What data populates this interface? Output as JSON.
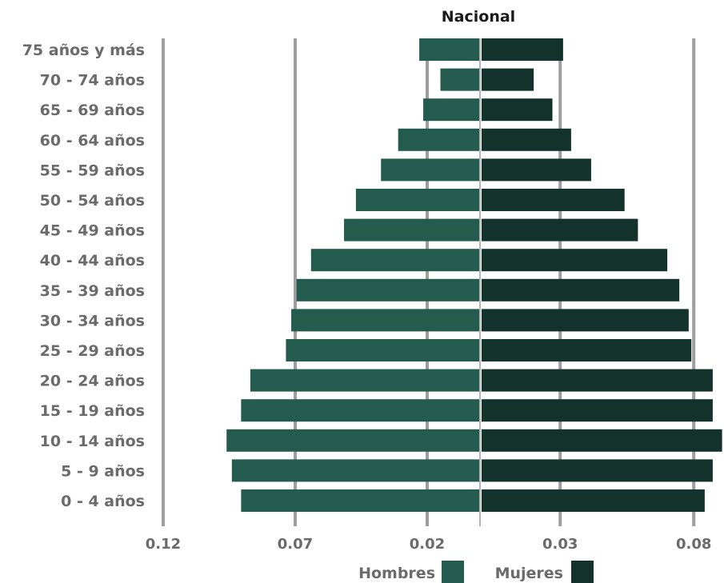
{
  "chart_data": {
    "type": "bar",
    "orientation": "horizontal-pyramid",
    "title": "Nacional",
    "categories": [
      "75 años y más",
      "70 - 74 años",
      "65 - 69 años",
      "60 - 64 años",
      "55 - 59 años",
      "50 - 54 años",
      "45 - 49 años",
      "40 - 44 años",
      "35 - 39 años",
      "30 - 34 años",
      "25 - 29 años",
      "20 - 24 años",
      "15 - 19 años",
      "10 - 14 años",
      "5 - 9 años",
      "0 - 4 años"
    ],
    "series": [
      {
        "name": "Hombres",
        "color": "#235c4e",
        "side": "left",
        "values": [
          0.023,
          0.015,
          0.0215,
          0.031,
          0.0375,
          0.047,
          0.0515,
          0.064,
          0.0695,
          0.0715,
          0.0735,
          0.087,
          0.0905,
          0.096,
          0.094,
          0.0905
        ]
      },
      {
        "name": "Mujeres",
        "color": "#13322b",
        "side": "right",
        "values": [
          0.0305,
          0.0195,
          0.0265,
          0.0335,
          0.041,
          0.0535,
          0.0585,
          0.0695,
          0.074,
          0.0775,
          0.0785,
          0.0865,
          0.0865,
          0.09,
          0.0865,
          0.0835
        ]
      }
    ],
    "x_ticks": [
      {
        "label": "0.12",
        "value": -0.12
      },
      {
        "label": "0.07",
        "value": -0.07
      },
      {
        "label": "0.02",
        "value": -0.02
      },
      {
        "label": "0.03",
        "value": 0.03
      },
      {
        "label": "0.08",
        "value": 0.08
      }
    ],
    "xlim": [
      -0.12,
      0.08
    ],
    "grid": true,
    "legend": {
      "placement": "bottom-center",
      "entries": [
        "Hombres",
        "Mujeres"
      ]
    },
    "xlabel": "",
    "ylabel": ""
  }
}
